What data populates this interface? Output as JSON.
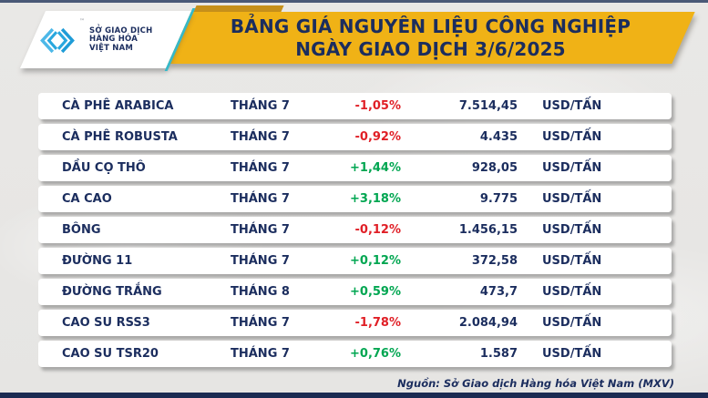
{
  "header": {
    "title_line1": "BẢNG GIÁ NGUYÊN LIỆU CÔNG NGHIỆP",
    "title_line2": "NGÀY GIAO DỊCH 3/6/2025",
    "logo": {
      "trademark": "™",
      "org_line1": "SỞ GIAO DỊCH",
      "org_line2": "HÀNG HÓA",
      "org_line3": "VIỆT NAM"
    }
  },
  "table": {
    "rows": [
      {
        "name": "CÀ PHÊ ARABICA",
        "month": "THÁNG 7",
        "change": "-1,05%",
        "direction": "down",
        "price": "7.514,45",
        "unit": "USD/TẤN"
      },
      {
        "name": "CÀ PHÊ ROBUSTA",
        "month": "THÁNG 7",
        "change": "-0,92%",
        "direction": "down",
        "price": "4.435",
        "unit": "USD/TẤN"
      },
      {
        "name": "DẦU CỌ THÔ",
        "month": "THÁNG 7",
        "change": "+1,44%",
        "direction": "up",
        "price": "928,05",
        "unit": "USD/TẤN"
      },
      {
        "name": "CA CAO",
        "month": "THÁNG 7",
        "change": "+3,18%",
        "direction": "up",
        "price": "9.775",
        "unit": "USD/TẤN"
      },
      {
        "name": "BÔNG",
        "month": "THÁNG 7",
        "change": "-0,12%",
        "direction": "down",
        "price": "1.456,15",
        "unit": "USD/TẤN"
      },
      {
        "name": "ĐƯỜNG 11",
        "month": "THÁNG 7",
        "change": "+0,12%",
        "direction": "up",
        "price": "372,58",
        "unit": "USD/TẤN"
      },
      {
        "name": "ĐƯỜNG TRẮNG",
        "month": "THÁNG 8",
        "change": "+0,59%",
        "direction": "up",
        "price": "473,7",
        "unit": "USD/TẤN"
      },
      {
        "name": "CAO SU RSS3",
        "month": "THÁNG 7",
        "change": "-1,78%",
        "direction": "down",
        "price": "2.084,94",
        "unit": "USD/TẤN"
      },
      {
        "name": "CAO SU TSR20",
        "month": "THÁNG 7",
        "change": "+0,76%",
        "direction": "up",
        "price": "1.587",
        "unit": "USD/TẤN"
      }
    ]
  },
  "footer": {
    "source": "Nguồn: Sở Giao dịch Hàng hóa Việt Nam (MXV)"
  },
  "colors": {
    "banner_yellow": "#f0b216",
    "accent_gold": "#c6901b",
    "navy": "#1b2d5e",
    "up_green": "#00a651",
    "down_red": "#e01f26",
    "logo_blue": "#29a7de",
    "teal_line": "#35b9c9",
    "row_bg": "#ffffff",
    "page_bg": "#e9e8e6"
  },
  "chart_data": {
    "type": "table",
    "title": "BẢNG GIÁ NGUYÊN LIỆU CÔNG NGHIỆP NGÀY GIAO DỊCH 3/6/2025",
    "rows": [
      {
        "commodity": "CÀ PHÊ ARABICA",
        "contract_month": "THÁNG 7",
        "change_percent": -1.05,
        "price": 7514.45,
        "unit": "USD/TẤN"
      },
      {
        "commodity": "CÀ PHÊ ROBUSTA",
        "contract_month": "THÁNG 7",
        "change_percent": -0.92,
        "price": 4435,
        "unit": "USD/TẤN"
      },
      {
        "commodity": "DẦU CỌ THÔ",
        "contract_month": "THÁNG 7",
        "change_percent": 1.44,
        "price": 928.05,
        "unit": "USD/TẤN"
      },
      {
        "commodity": "CA CAO",
        "contract_month": "THÁNG 7",
        "change_percent": 3.18,
        "price": 9775,
        "unit": "USD/TẤN"
      },
      {
        "commodity": "BÔNG",
        "contract_month": "THÁNG 7",
        "change_percent": -0.12,
        "price": 1456.15,
        "unit": "USD/TẤN"
      },
      {
        "commodity": "ĐƯỜNG 11",
        "contract_month": "THÁNG 7",
        "change_percent": 0.12,
        "price": 372.58,
        "unit": "USD/TẤN"
      },
      {
        "commodity": "ĐƯỜNG TRẮNG",
        "contract_month": "THÁNG 8",
        "change_percent": 0.59,
        "price": 473.7,
        "unit": "USD/TẤN"
      },
      {
        "commodity": "CAO SU RSS3",
        "contract_month": "THÁNG 7",
        "change_percent": -1.78,
        "price": 2084.94,
        "unit": "USD/TẤN"
      },
      {
        "commodity": "CAO SU TSR20",
        "contract_month": "THÁNG 7",
        "change_percent": 0.76,
        "price": 1587,
        "unit": "USD/TẤN"
      }
    ],
    "source": "Nguồn: Sở Giao dịch Hàng hóa Việt Nam (MXV)"
  }
}
